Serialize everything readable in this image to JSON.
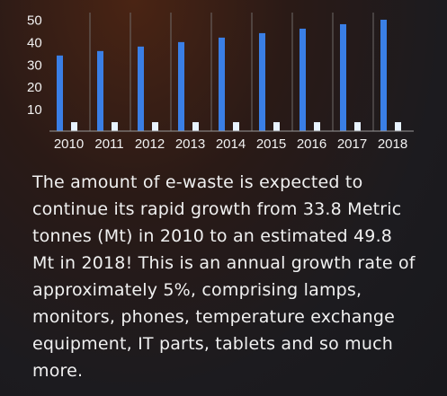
{
  "chart_data": {
    "type": "bar",
    "categories": [
      "2010",
      "2011",
      "2012",
      "2013",
      "2014",
      "2015",
      "2016",
      "2017",
      "2018"
    ],
    "series": [
      {
        "values": [
          33.8,
          35.8,
          37.8,
          39.8,
          41.8,
          43.8,
          45.8,
          47.8,
          49.8
        ],
        "color": "#3a7fe6"
      },
      {
        "values": [
          4,
          4,
          4,
          4,
          4,
          4,
          4,
          4,
          4
        ],
        "color": "#e8f3ff"
      }
    ],
    "yticks": [
      10,
      20,
      30,
      40,
      50
    ],
    "ylim": [
      0,
      53
    ],
    "grid": true,
    "title": "",
    "xlabel": "",
    "ylabel": ""
  },
  "description": "The amount of e-waste is expected to continue its rapid growth from 33.8 Metric tonnes (Mt) in 2010 to an estimated 49.8 Mt in 2018! This is an annual growth rate of approximately 5%, comprising lamps, monitors, phones, temperature exchange equipment, IT parts, tablets and so much more."
}
